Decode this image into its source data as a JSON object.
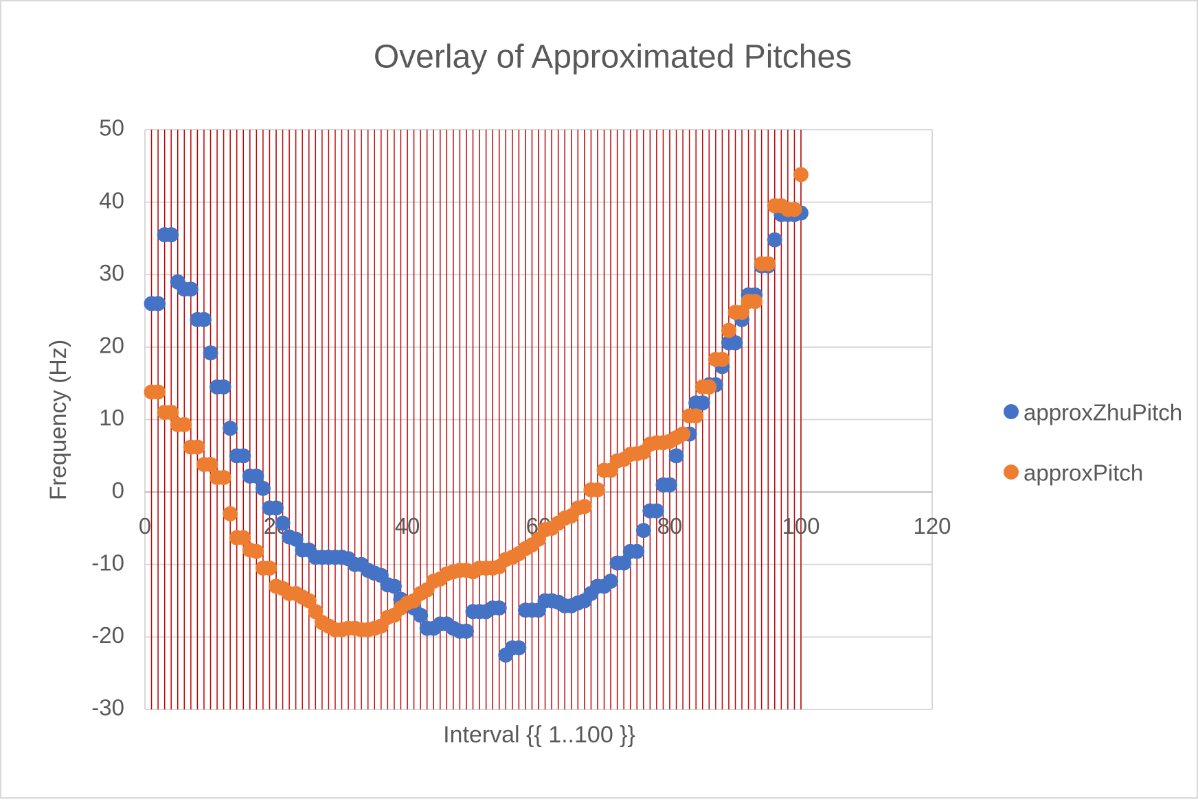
{
  "chart_data": {
    "type": "scatter",
    "title": "Overlay of Approximated Pitches",
    "x_label": "Interval {{ 1..100 }}",
    "y_label": "Frequency (Hz)",
    "x": [
      1,
      2,
      3,
      4,
      5,
      6,
      7,
      8,
      9,
      10,
      11,
      12,
      13,
      14,
      15,
      16,
      17,
      18,
      19,
      20,
      21,
      22,
      23,
      24,
      25,
      26,
      27,
      28,
      29,
      30,
      31,
      32,
      33,
      34,
      35,
      36,
      37,
      38,
      39,
      40,
      41,
      42,
      43,
      44,
      45,
      46,
      47,
      48,
      49,
      50,
      51,
      52,
      53,
      54,
      55,
      56,
      57,
      58,
      59,
      60,
      61,
      62,
      63,
      64,
      65,
      66,
      67,
      68,
      69,
      70,
      71,
      72,
      73,
      74,
      75,
      76,
      77,
      78,
      79,
      80,
      81,
      82,
      83,
      84,
      85,
      86,
      87,
      88,
      89,
      90,
      91,
      92,
      93,
      94,
      95,
      96,
      97,
      98,
      99,
      100
    ],
    "series": [
      {
        "name": "approxZhuPitch",
        "color": "#4472c4",
        "values": [
          26,
          26,
          35.5,
          35.5,
          29,
          28,
          28,
          23.8,
          23.8,
          19.2,
          14.5,
          14.5,
          8.8,
          5,
          5,
          2.2,
          2.2,
          0.5,
          -2.2,
          -2.2,
          -4.3,
          -6.2,
          -6.5,
          -8,
          -8,
          -9,
          -9,
          -9,
          -9,
          -9,
          -9.2,
          -10,
          -10,
          -10.8,
          -11.2,
          -11.5,
          -12.8,
          -13,
          -14.8,
          -15.5,
          -16,
          -17,
          -18.8,
          -18.8,
          -18.2,
          -18.2,
          -18.8,
          -19.2,
          -19.2,
          -16.5,
          -16.5,
          -16.5,
          -16,
          -16,
          -22.5,
          -21.5,
          -21.5,
          -16.3,
          -16.3,
          -16.3,
          -15,
          -15,
          -15.2,
          -15.7,
          -15.7,
          -15.3,
          -15,
          -14,
          -13,
          -13,
          -12.3,
          -9.8,
          -9.8,
          -8.2,
          -8.2,
          -5.3,
          -2.6,
          -2.6,
          1,
          1,
          5,
          8,
          8,
          12.3,
          12.3,
          14.8,
          14.8,
          17.3,
          20.6,
          20.6,
          23.8,
          27.2,
          27.2,
          31.2,
          31.2,
          34.8,
          38.3,
          38.3,
          38.3,
          38.5
        ]
      },
      {
        "name": "approxPitch",
        "color": "#ed7d31",
        "values": [
          13.8,
          13.8,
          11,
          11,
          9.3,
          9.3,
          6.2,
          6.2,
          3.8,
          3.8,
          2,
          2,
          -3,
          -6.3,
          -6.3,
          -8,
          -8.2,
          -10.5,
          -10.5,
          -13,
          -13.3,
          -14,
          -14,
          -14.5,
          -15,
          -16.5,
          -18,
          -18.5,
          -19,
          -19,
          -18.8,
          -18.8,
          -19,
          -19,
          -18.8,
          -18.5,
          -17.3,
          -17,
          -16,
          -15.3,
          -15,
          -14,
          -13.5,
          -12.3,
          -12,
          -11.3,
          -11,
          -10.8,
          -10.8,
          -11,
          -10.5,
          -10.5,
          -10.5,
          -10.3,
          -9.3,
          -9,
          -8.5,
          -7.8,
          -7.3,
          -6.5,
          -5.2,
          -5,
          -4.3,
          -3.6,
          -3.3,
          -2.2,
          -2,
          0.3,
          0.3,
          3,
          3,
          4.3,
          4.5,
          5.2,
          5.3,
          5.5,
          6.6,
          6.8,
          6.8,
          7,
          7.5,
          8,
          10.5,
          10.5,
          14.5,
          14.5,
          18.3,
          18.3,
          22.3,
          24.8,
          24.8,
          26.3,
          26.3,
          31.5,
          31.5,
          39.5,
          39.5,
          39,
          39,
          43.8
        ]
      }
    ],
    "xlim": [
      0,
      120
    ],
    "xticks": [
      0,
      20,
      40,
      60,
      80,
      100,
      120
    ],
    "ylim": [
      -30,
      50
    ],
    "yticks": [
      -30,
      -20,
      -10,
      0,
      10,
      20,
      30,
      40,
      50
    ],
    "grid": true,
    "drop_line_color": "#c00000",
    "legend": "right"
  }
}
